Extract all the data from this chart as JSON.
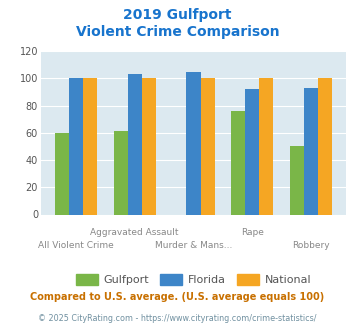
{
  "title_line1": "2019 Gulfport",
  "title_line2": "Violent Crime Comparison",
  "title_color": "#1874cd",
  "categories": [
    "All Violent Crime",
    "Aggravated Assault",
    "Murder & Mans...",
    "Rape",
    "Robbery"
  ],
  "gulfport": [
    60,
    61,
    0,
    76,
    50
  ],
  "florida": [
    100,
    103,
    105,
    92,
    93
  ],
  "national": [
    100,
    100,
    100,
    100,
    100
  ],
  "gulfport_color": "#7ab648",
  "florida_color": "#3d85c8",
  "national_color": "#f5a623",
  "ylim": [
    0,
    120
  ],
  "yticks": [
    0,
    20,
    40,
    60,
    80,
    100,
    120
  ],
  "plot_bg": "#dce9f0",
  "footnote1": "Compared to U.S. average. (U.S. average equals 100)",
  "footnote2": "© 2025 CityRating.com - https://www.cityrating.com/crime-statistics/",
  "footnote1_color": "#c87000",
  "footnote2_color": "#7090a0",
  "legend_labels": [
    "Gulfport",
    "Florida",
    "National"
  ],
  "bar_width": 0.24
}
